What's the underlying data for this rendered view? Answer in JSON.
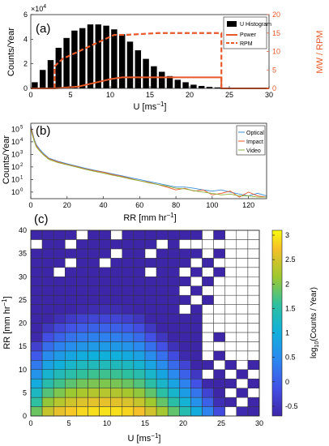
{
  "chart_data": [
    {
      "panel_label": "(a)",
      "type": "bar",
      "xlabel": "U [ms",
      "xlabel_sup": "−1",
      "xlabel_close": "]",
      "ylabel_left": "Counts/Year",
      "ylabel_right": "MW / RPM",
      "y_multiplier_base": "×10",
      "y_multiplier_exp": "4",
      "xlim": [
        0,
        30
      ],
      "ylim_left": [
        0,
        6
      ],
      "ylim_right": [
        0,
        20
      ],
      "x_ticks": [
        0,
        5,
        10,
        15,
        20,
        25,
        30
      ],
      "y_ticks_left": [
        0,
        2,
        4,
        6
      ],
      "y_ticks_right": [
        0,
        5,
        10,
        15,
        20
      ],
      "histogram": {
        "name": "U Histogram",
        "bin_width": 1,
        "bin_starts": [
          0,
          1,
          2,
          3,
          4,
          5,
          6,
          7,
          8,
          9,
          10,
          11,
          12,
          13,
          14,
          15,
          16,
          17,
          18,
          19,
          20,
          21,
          22,
          23,
          24
        ],
        "values": [
          0.5,
          1.5,
          2.3,
          3.3,
          4.1,
          4.7,
          4.9,
          5.2,
          5.2,
          5.1,
          4.8,
          4.4,
          3.8,
          3.1,
          2.4,
          1.8,
          1.35,
          1.0,
          0.7,
          0.5,
          0.3,
          0.2,
          0.12,
          0.08,
          0.04
        ]
      },
      "power": {
        "name": "Power",
        "x": [
          0,
          3,
          6,
          8,
          10,
          11.5,
          24,
          24,
          30
        ],
        "y": [
          0,
          0,
          0.5,
          1.5,
          2.5,
          3,
          3,
          0,
          0
        ]
      },
      "rpm": {
        "name": "RPM",
        "x": [
          3,
          3,
          4,
          6,
          8,
          9,
          10,
          10.5,
          11,
          12,
          16,
          24,
          24
        ],
        "y": [
          0,
          6,
          8,
          10,
          12,
          13,
          14,
          14.5,
          14.5,
          14.5,
          15,
          15,
          0
        ]
      },
      "colors": {
        "histogram": "#000000",
        "power": "#e8592a",
        "rpm": "#e8592a",
        "right_axis": "#e8592a"
      },
      "legend_position": "top-right"
    },
    {
      "panel_label": "(b)",
      "type": "line",
      "xlabel": "RR [mm hr",
      "xlabel_sup": "−1",
      "xlabel_close": "]",
      "ylabel": "Counts/Year",
      "y_scale": "log",
      "xlim": [
        0,
        130
      ],
      "ylim": [
        0.3,
        300000
      ],
      "x_ticks": [
        0,
        20,
        40,
        60,
        80,
        100,
        120
      ],
      "y_tick_exponents": [
        0,
        1,
        2,
        3,
        4,
        5
      ],
      "series": [
        {
          "name": "Optical",
          "color": "#3b8fd6",
          "x": [
            0,
            1,
            2,
            3,
            5,
            7,
            10,
            15,
            20,
            25,
            30,
            35,
            40,
            45,
            50,
            55,
            60,
            65,
            70,
            75,
            80,
            85,
            90,
            95,
            100,
            105,
            110,
            115,
            120,
            125,
            130
          ],
          "y": [
            200000,
            50000,
            15000,
            6000,
            2500,
            1200,
            500,
            280,
            180,
            120,
            80,
            55,
            40,
            28,
            20,
            14,
            10,
            7,
            5,
            3.5,
            2.5,
            2.5,
            2,
            1.5,
            1.2,
            1.5,
            1,
            0.7,
            0.5,
            0.8,
            0.5
          ]
        },
        {
          "name": "Impact",
          "color": "#e8592a",
          "x": [
            0,
            1,
            2,
            3,
            5,
            7,
            10,
            15,
            20,
            25,
            30,
            35,
            40,
            45,
            50,
            55,
            60,
            65,
            70,
            75,
            80,
            85,
            90,
            95,
            100,
            105,
            110,
            115,
            120,
            125,
            130
          ],
          "y": [
            150000,
            40000,
            12000,
            5000,
            2000,
            1000,
            450,
            250,
            160,
            110,
            70,
            50,
            38,
            25,
            18,
            12,
            8,
            6,
            4,
            2.5,
            1.5,
            2,
            1.2,
            1.5,
            0.6,
            0.8,
            1.2,
            0.4,
            1,
            0.5,
            0.4
          ]
        },
        {
          "name": "Video",
          "color": "#8fb03a",
          "x": [
            0,
            1,
            2,
            3,
            5,
            7,
            10,
            15,
            20,
            25,
            30,
            35,
            40,
            45,
            50,
            55,
            60,
            65,
            70,
            75,
            80,
            85,
            90,
            95,
            100,
            105,
            110,
            115,
            120,
            125,
            130
          ],
          "y": [
            100000,
            30000,
            10000,
            4000,
            1800,
            900,
            400,
            220,
            150,
            100,
            65,
            45,
            32,
            22,
            16,
            11,
            8,
            5.5,
            4,
            3,
            2,
            1.8,
            1.3,
            1,
            0.8,
            0.6,
            0.7,
            0.5,
            0.5,
            0.4,
            0.4
          ]
        }
      ],
      "legend_position": "top-right"
    },
    {
      "panel_label": "(c)",
      "type": "heatmap",
      "xlabel": "U [ms",
      "xlabel_sup": "−1",
      "xlabel_close": "]",
      "ylabel": "RR [mm hr",
      "ylabel_sup": "−1",
      "ylabel_close": "]",
      "xlim": [
        0,
        30
      ],
      "ylim": [
        0,
        40
      ],
      "x_ticks": [
        0,
        5,
        10,
        15,
        20,
        25,
        30
      ],
      "y_ticks": [
        0,
        5,
        10,
        15,
        20,
        25,
        30,
        35,
        40
      ],
      "bin_width_x": 1.5,
      "bin_width_y": 2,
      "colorbar": {
        "label_prefix": "log",
        "label_sub": "10",
        "label_suffix": "(Counts / Year)",
        "range": [
          -0.7,
          3.1
        ],
        "ticks": [
          "-0.5",
          "0",
          "0.5",
          "1",
          "1.5",
          "2",
          "2.5",
          "3"
        ],
        "tick_values": [
          -0.5,
          0,
          0.5,
          1,
          1.5,
          2,
          2.5,
          3
        ]
      }
    }
  ]
}
